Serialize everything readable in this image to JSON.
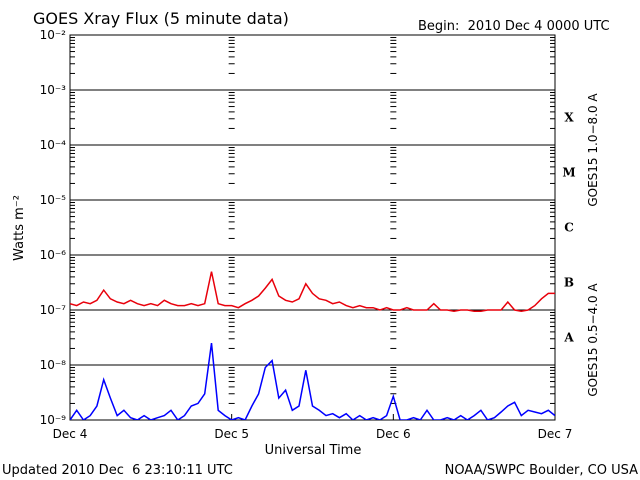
{
  "chart_data": {
    "type": "line",
    "title": "GOES Xray Flux (5 minute data)",
    "subtitle": "Begin:  2010 Dec 4 0000 UTC",
    "xlabel": "Universal Time",
    "ylabel": "Watts m⁻²",
    "footer_left": "Updated 2010 Dec  6 23:10:11 UTC",
    "footer_right": "NOAA/SWPC Boulder, CO USA",
    "log_y": true,
    "grid": true,
    "xlim": [
      0,
      72
    ],
    "xticks": [
      {
        "value": 0,
        "label": "Dec 4"
      },
      {
        "value": 24,
        "label": "Dec 5"
      },
      {
        "value": 48,
        "label": "Dec 6"
      },
      {
        "value": 72,
        "label": "Dec 7"
      }
    ],
    "ylim": [
      1e-09,
      0.01
    ],
    "yticks": [
      {
        "value": 1e-09,
        "label": "10⁻⁹"
      },
      {
        "value": 1e-08,
        "label": "10⁻⁸"
      },
      {
        "value": 1e-07,
        "label": "10⁻⁷"
      },
      {
        "value": 1e-06,
        "label": "10⁻⁶"
      },
      {
        "value": 1e-05,
        "label": "10⁻⁵"
      },
      {
        "value": 0.0001,
        "label": "10⁻⁴"
      },
      {
        "value": 0.001,
        "label": "10⁻³"
      },
      {
        "value": 0.01,
        "label": "10⁻²"
      }
    ],
    "flare_classes": [
      {
        "label": "A",
        "value": 1e-08
      },
      {
        "label": "B",
        "value": 1e-07
      },
      {
        "label": "C",
        "value": 1e-06
      },
      {
        "label": "M",
        "value": 1e-05
      },
      {
        "label": "X",
        "value": 0.0001
      }
    ],
    "x": [
      0,
      1,
      2,
      3,
      4,
      5,
      6,
      7,
      8,
      9,
      10,
      11,
      12,
      13,
      14,
      15,
      16,
      17,
      18,
      19,
      20,
      21,
      22,
      23,
      24,
      25,
      26,
      27,
      28,
      29,
      30,
      31,
      32,
      33,
      34,
      35,
      36,
      37,
      38,
      39,
      40,
      41,
      42,
      43,
      44,
      45,
      46,
      47,
      48,
      49,
      50,
      51,
      52,
      53,
      54,
      55,
      56,
      57,
      58,
      59,
      60,
      61,
      62,
      63,
      64,
      65,
      66,
      67,
      68,
      69,
      70,
      71,
      72
    ],
    "series": [
      {
        "name": "GOES15 1.0−8.0 A",
        "color": "#e8000b",
        "values": [
          1.3e-07,
          1.2e-07,
          1.4e-07,
          1.3e-07,
          1.5e-07,
          2.3e-07,
          1.6e-07,
          1.4e-07,
          1.3e-07,
          1.5e-07,
          1.3e-07,
          1.2e-07,
          1.3e-07,
          1.2e-07,
          1.5e-07,
          1.3e-07,
          1.2e-07,
          1.2e-07,
          1.3e-07,
          1.2e-07,
          1.3e-07,
          5e-07,
          1.3e-07,
          1.2e-07,
          1.2e-07,
          1.1e-07,
          1.3e-07,
          1.5e-07,
          1.8e-07,
          2.5e-07,
          3.6e-07,
          1.8e-07,
          1.5e-07,
          1.4e-07,
          1.6e-07,
          3e-07,
          2e-07,
          1.6e-07,
          1.5e-07,
          1.3e-07,
          1.4e-07,
          1.2e-07,
          1.1e-07,
          1.2e-07,
          1.1e-07,
          1.1e-07,
          1e-07,
          1.1e-07,
          1e-07,
          1e-07,
          1.1e-07,
          1e-07,
          1e-07,
          1e-07,
          1.3e-07,
          1e-07,
          1e-07,
          9.5e-08,
          1e-07,
          1e-07,
          9.5e-08,
          9.5e-08,
          1e-07,
          1e-07,
          1e-07,
          1.4e-07,
          1e-07,
          9.5e-08,
          1e-07,
          1.2e-07,
          1.6e-07,
          2e-07,
          2e-07
        ]
      },
      {
        "name": "GOES15 0.5−4.0 A",
        "color": "#0000ff",
        "values": [
          1e-09,
          1.5e-09,
          1e-09,
          1.2e-09,
          1.8e-09,
          5.4e-09,
          2.5e-09,
          1.2e-09,
          1.5e-09,
          1.1e-09,
          1e-09,
          1.2e-09,
          1e-09,
          1.1e-09,
          1.2e-09,
          1.5e-09,
          1e-09,
          1.2e-09,
          1.8e-09,
          2e-09,
          3e-09,
          2.5e-08,
          1.5e-09,
          1.2e-09,
          1e-09,
          1.1e-09,
          1e-09,
          1.8e-09,
          3e-09,
          9e-09,
          1.2e-08,
          2.5e-09,
          3.5e-09,
          1.5e-09,
          1.8e-09,
          8e-09,
          1.8e-09,
          1.5e-09,
          1.2e-09,
          1.3e-09,
          1.1e-09,
          1.3e-09,
          1e-09,
          1.2e-09,
          1e-09,
          1.1e-09,
          1e-09,
          1.2e-09,
          2.7e-09,
          1e-09,
          1e-09,
          1.1e-09,
          1e-09,
          1.5e-09,
          1e-09,
          1e-09,
          1.1e-09,
          1e-09,
          1.2e-09,
          1e-09,
          1.2e-09,
          1.5e-09,
          1e-09,
          1.1e-09,
          1.4e-09,
          1.8e-09,
          2.1e-09,
          1.2e-09,
          1.5e-09,
          1.4e-09,
          1.3e-09,
          1.5e-09,
          1.2e-09
        ]
      }
    ]
  }
}
